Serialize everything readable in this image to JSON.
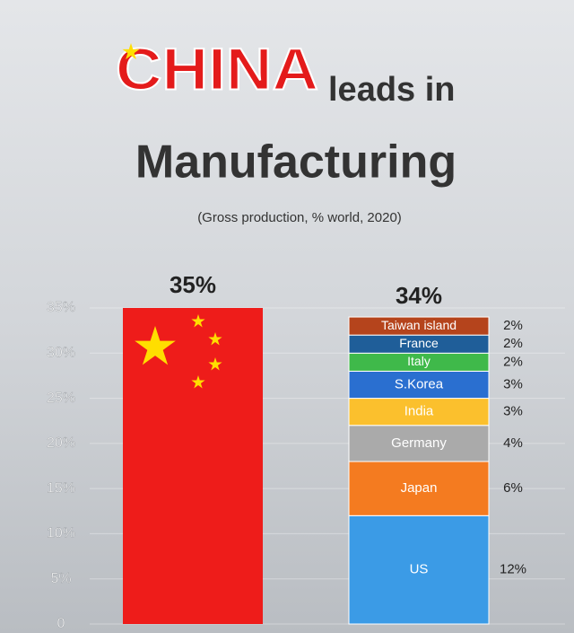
{
  "chart_data": {
    "type": "stacked_bar",
    "title": [
      "CHINA",
      "leads in",
      "Manufacturing"
    ],
    "subtitle": "(Gross production, % world, 2020)",
    "ylim": [
      0,
      35
    ],
    "yticks": [
      0,
      {
        "value": 5,
        "label": "5%"
      },
      {
        "value": 10,
        "label": "10%"
      },
      {
        "value": 15,
        "label": "15%"
      },
      {
        "value": 20,
        "label": "20%"
      },
      {
        "value": 25,
        "label": "25%"
      },
      {
        "value": 30,
        "label": "30%"
      },
      {
        "value": 35,
        "label": "35%"
      }
    ],
    "grid": true,
    "columns": [
      {
        "values": [
          35
        ],
        "value_labels": [
          "35%"
        ],
        "color": "#ee1c1a"
      },
      {
        "total": 34,
        "total_label": "34%",
        "series": [
          {
            "name": "US",
            "color": "#3b9be6",
            "values": [
              12
            ],
            "value_labels": [
              "12%"
            ]
          },
          {
            "name": "Japan",
            "color": "#f47b20",
            "values": [
              6
            ],
            "value_labels": [
              "6%"
            ]
          },
          {
            "name": "Germany",
            "color": "#aaaaaa",
            "values": [
              4
            ],
            "value_labels": [
              "4%"
            ]
          },
          {
            "name": "India",
            "color": "#fbc02d",
            "values": [
              3
            ],
            "value_labels": [
              "3%"
            ]
          },
          {
            "name": "S.Korea",
            "color": "#2a6fd0",
            "values": [
              3
            ],
            "value_labels": [
              "3%"
            ]
          },
          {
            "name": "Italy",
            "color": "#3fb94a",
            "values": [
              2
            ],
            "value_labels": [
              "2%"
            ]
          },
          {
            "name": "France",
            "color": "#1f5e99",
            "values": [
              2
            ],
            "value_labels": [
              "2%"
            ]
          },
          {
            "name": "Taiwan island",
            "color": "#b5441c",
            "values": [
              2
            ],
            "value_labels": [
              "2%"
            ]
          }
        ]
      }
    ]
  }
}
